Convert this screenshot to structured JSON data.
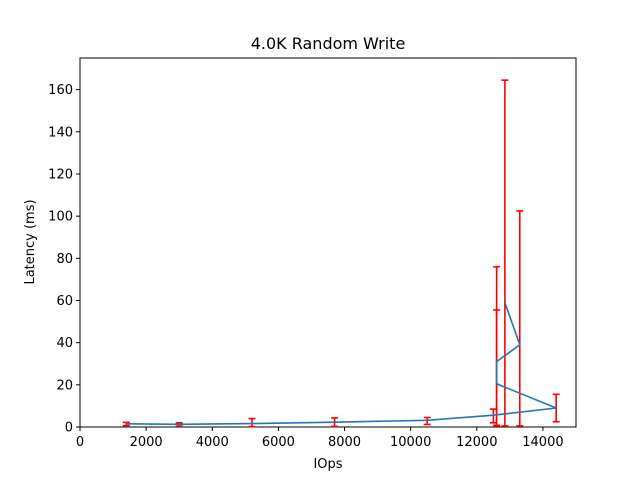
{
  "chart_data": {
    "type": "line",
    "title": "4.0K  Random Write",
    "xlabel": "IOps",
    "ylabel": "Latency (ms)",
    "xlim": [
      0,
      15000
    ],
    "ylim": [
      0,
      175
    ],
    "xticks": [
      0,
      2000,
      4000,
      6000,
      8000,
      10000,
      12000,
      14000
    ],
    "yticks": [
      0,
      20,
      40,
      60,
      80,
      100,
      120,
      140,
      160
    ],
    "grid": false,
    "series": [
      {
        "color": "#1f77b4",
        "points": [
          {
            "x": 1400,
            "y": 1.5,
            "err_low": 0.7,
            "err_high": 2.2
          },
          {
            "x": 3000,
            "y": 1.3,
            "err_low": 0.4,
            "err_high": 2.0
          },
          {
            "x": 5200,
            "y": 1.6,
            "err_low": 0.2,
            "err_high": 4.0
          },
          {
            "x": 7700,
            "y": 2.3,
            "err_low": 0.3,
            "err_high": 4.3
          },
          {
            "x": 10500,
            "y": 3.2,
            "err_low": 1.2,
            "err_high": 4.5
          },
          {
            "x": 12500,
            "y": 5.6,
            "err_low": 2.0,
            "err_high": 8.5
          },
          {
            "x": 14400,
            "y": 9.0,
            "err_low": 2.5,
            "err_high": 15.5
          },
          {
            "x": 12600,
            "y": 20.5,
            "err_low": 0.5,
            "err_high": 55.5
          },
          {
            "x": 12600,
            "y": 31.0,
            "err_low": 0.8,
            "err_high": 76.0
          },
          {
            "x": 13300,
            "y": 39.0,
            "err_low": 0.5,
            "err_high": 102.5
          },
          {
            "x": 12850,
            "y": 59.0,
            "err_low": 0.5,
            "err_high": 164.5
          }
        ]
      }
    ],
    "errorbar_color": "#ff0000"
  }
}
